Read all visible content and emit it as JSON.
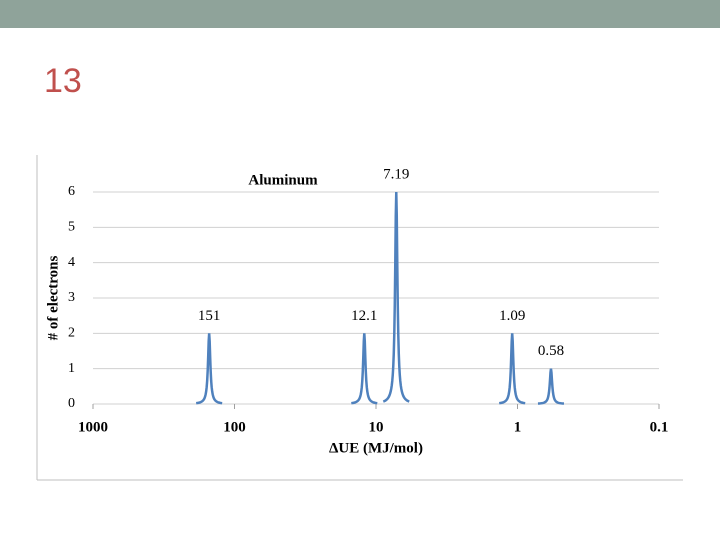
{
  "slide_number": "13",
  "chart_data": {
    "type": "line",
    "title": "Aluminum",
    "x_label": "ΔUE (MJ/mol)",
    "y_label": "# of electrons",
    "x": [
      151,
      12.1,
      7.19,
      1.09,
      0.58
    ],
    "series": [
      {
        "name": "Aluminum",
        "color": "#4f81bd",
        "values": [
          2,
          2,
          6,
          2,
          1
        ]
      }
    ],
    "xlim": [
      1000,
      0.1
    ],
    "xticks": [
      1000,
      100,
      10,
      1,
      0.1
    ],
    "xlog": true,
    "ylim": [
      0,
      6
    ],
    "yticks": [
      0,
      1,
      2,
      3,
      4,
      5,
      6
    ],
    "grid": true
  }
}
